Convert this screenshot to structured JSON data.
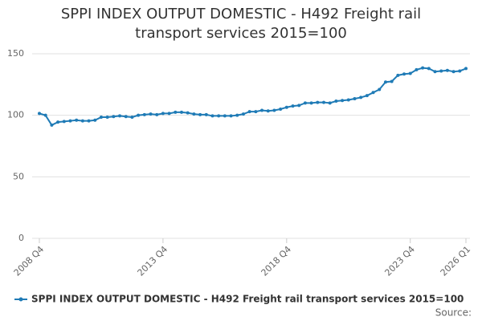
{
  "chart_data": {
    "type": "line",
    "title": "SPPI INDEX OUTPUT DOMESTIC - H492 Freight rail transport services 2015=100",
    "categories": [
      "2008 Q4",
      null,
      null,
      null,
      null,
      null,
      null,
      null,
      null,
      null,
      null,
      null,
      null,
      null,
      null,
      null,
      null,
      null,
      null,
      null,
      "2013 Q4",
      null,
      null,
      null,
      null,
      null,
      null,
      null,
      null,
      null,
      null,
      null,
      null,
      null,
      null,
      null,
      null,
      null,
      null,
      null,
      "2018 Q4",
      null,
      null,
      null,
      null,
      null,
      null,
      null,
      null,
      null,
      null,
      null,
      null,
      null,
      null,
      null,
      null,
      null,
      null,
      null,
      "2023 Q4",
      null,
      null,
      null,
      null,
      null,
      null,
      null,
      null,
      "2026 Q1"
    ],
    "series": [
      {
        "name": "SPPI INDEX OUTPUT DOMESTIC - H492 Freight rail transport services 2015=100",
        "color": "#1f7bb6",
        "values": [
          101.5,
          100,
          92,
          94.5,
          95,
          95.5,
          96,
          95.5,
          95.5,
          96,
          98.5,
          98.5,
          99,
          99.5,
          99,
          98.5,
          100,
          100.5,
          101,
          100.5,
          101.5,
          101.5,
          102.5,
          102.5,
          102,
          101,
          100.5,
          100.5,
          99.5,
          99.5,
          99.5,
          99.5,
          100,
          101,
          103,
          103,
          104,
          103.5,
          104,
          105,
          106.5,
          107.5,
          108,
          110,
          110,
          110.5,
          110.5,
          110,
          111.5,
          112,
          112.5,
          113.5,
          114.5,
          116,
          118.5,
          121,
          127,
          127.5,
          132.5,
          133.5,
          134,
          137,
          138.5,
          138,
          135.5,
          136,
          136.5,
          135.5,
          136,
          138
        ]
      }
    ],
    "ylim": [
      0,
      150
    ],
    "yticks": [
      0,
      50,
      100,
      150
    ],
    "grid": true,
    "source": "Source:"
  }
}
